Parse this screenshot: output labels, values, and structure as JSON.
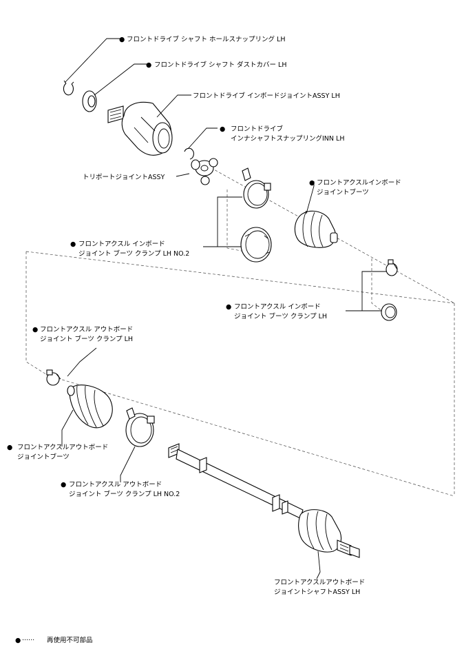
{
  "labels": {
    "hole_snap_ring": "フロントドライブ シャフト ホールスナップリング LH",
    "dust_cover": "フロントドライブ シャフト ダストカバー LH",
    "inboard_joint_assy": "フロントドライブ インボードジョイントASSY LH",
    "inner_snap_ring_1": "フロントドライブ",
    "inner_snap_ring_2": "インナシャフトスナップリングINN LH",
    "tripod_joint": "トリポートジョイントASSY",
    "inboard_boot_1": "フロントアクスルインボード",
    "inboard_boot_2": "ジョイントブーツ",
    "inboard_clamp_no2_1": "フロントアクスル インボード",
    "inboard_clamp_no2_2": "ジョイント ブーツ クランプ LH NO.2",
    "inboard_clamp_1": "フロントアクスル インボード",
    "inboard_clamp_2": "ジョイント ブーツ クランプ LH",
    "outboard_clamp_1": "フロントアクスル アウトボード",
    "outboard_clamp_2": "ジョイント ブーツ クランプ LH",
    "outboard_boot_1": "フロントアクスルアウトボード",
    "outboard_boot_2": "ジョイントブーツ",
    "outboard_clamp_no2_1": "フロントアクスル アウトボード",
    "outboard_clamp_no2_2": "ジョイント ブーツ クランプ LH NO.2",
    "outboard_shaft_1": "フロントアクスルアウトボード",
    "outboard_shaft_2": "ジョイントシャフトASSY LH"
  },
  "legend": {
    "marker": "●",
    "dots": "······",
    "text": "再使用不可部品"
  }
}
